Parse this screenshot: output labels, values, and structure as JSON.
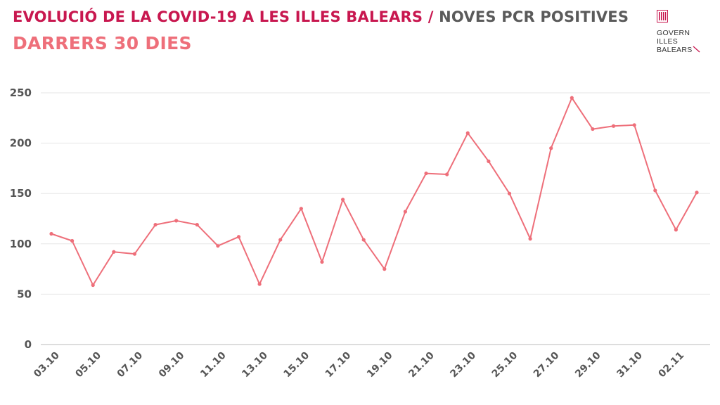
{
  "header": {
    "title_main": "EVOLUCIÓ DE LA COVID-19 A LES ILLES BALEARS",
    "title_separator": "/",
    "title_secondary": "NOVES PCR POSITIVES",
    "subtitle": "DARRERS 30 DIES"
  },
  "logo": {
    "line1": "GOVERN",
    "line2": "ILLES",
    "line3": "BALEARS"
  },
  "colors": {
    "title": "#c8174f",
    "subtitle": "#ee6f7a",
    "line": "#ee6f7a",
    "grid": "#e6e6e6",
    "tick_text": "#555555"
  },
  "chart_data": {
    "type": "line",
    "title": "",
    "xlabel": "",
    "ylabel": "",
    "ylim": [
      0,
      250
    ],
    "yticks": [
      0,
      50,
      100,
      150,
      200,
      250
    ],
    "grid": true,
    "x": [
      "03.10",
      "04.10",
      "05.10",
      "06.10",
      "07.10",
      "08.10",
      "09.10",
      "10.10",
      "11.10",
      "12.10",
      "13.10",
      "14.10",
      "15.10",
      "16.10",
      "17.10",
      "18.10",
      "19.10",
      "20.10",
      "21.10",
      "22.10",
      "23.10",
      "24.10",
      "25.10",
      "26.10",
      "27.10",
      "28.10",
      "29.10",
      "30.10",
      "31.10",
      "01.11",
      "02.11",
      "03.11"
    ],
    "x_tick_labels": [
      "03.10",
      "05.10",
      "07.10",
      "09.10",
      "11.10",
      "13.10",
      "15.10",
      "17.10",
      "19.10",
      "21.10",
      "23.10",
      "25.10",
      "27.10",
      "29.10",
      "31.10",
      "02.11"
    ],
    "series": [
      {
        "values": [
          110,
          103,
          59,
          92,
          90,
          119,
          123,
          119,
          98,
          107,
          60,
          104,
          135,
          82,
          144,
          104,
          75,
          132,
          170,
          169,
          210,
          182,
          150,
          105,
          195,
          245,
          214,
          217,
          218,
          153,
          114,
          151
        ]
      }
    ]
  }
}
